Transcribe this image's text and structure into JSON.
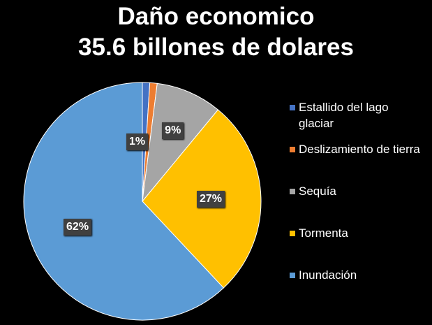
{
  "chart_data": {
    "type": "pie",
    "title": "Daño economico",
    "subtitle": "35.6 billones de dolares",
    "categories": [
      "Estallido del lago glaciar",
      "Deslizamiento de tierra",
      "Sequía",
      "Tormenta",
      "Inundación"
    ],
    "values": [
      1,
      1,
      9,
      27,
      62
    ],
    "data_labels": [
      "1%",
      "",
      "9%",
      "27%",
      "62%"
    ],
    "colors": [
      "#4472C4",
      "#ED7D31",
      "#A5A5A5",
      "#FFC000",
      "#5B9BD5"
    ],
    "legend_position": "right"
  }
}
